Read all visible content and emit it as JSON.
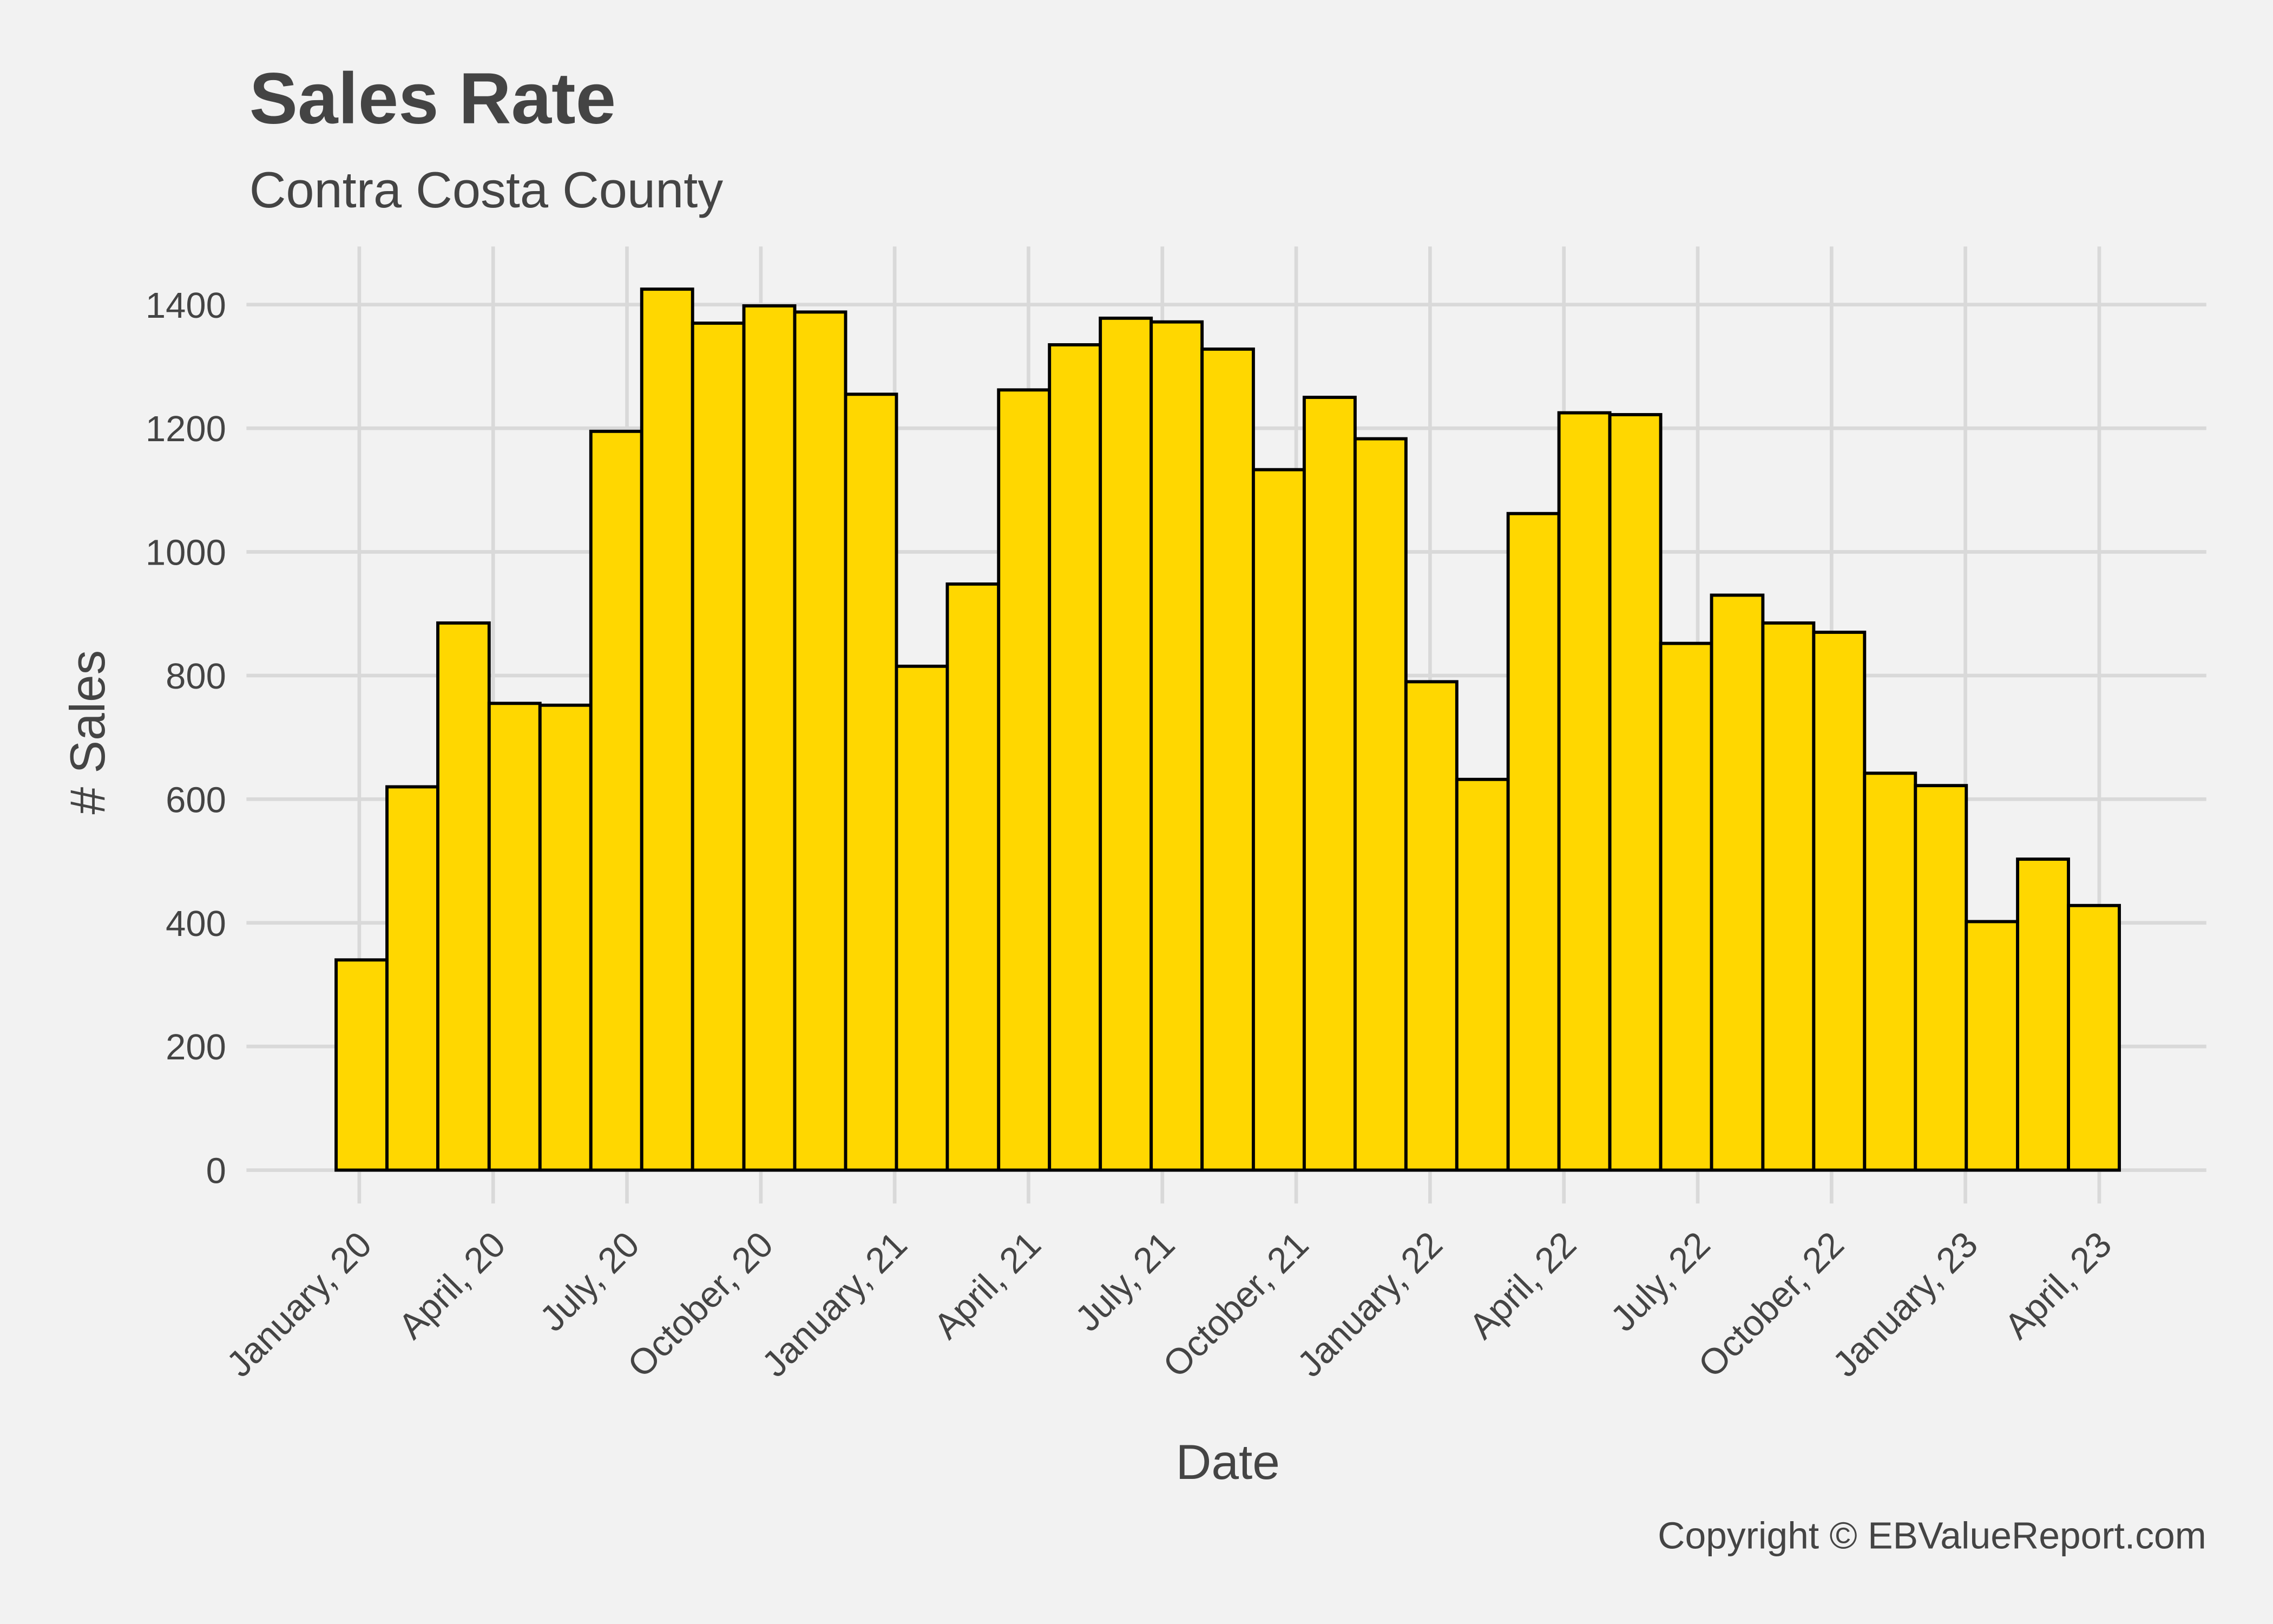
{
  "chart_data": {
    "type": "histogram",
    "title": "Sales Rate",
    "subtitle": "Contra Costa County",
    "x_label": "Date",
    "y_label": "# Sales",
    "caption": "Copyright  © EBValueReport.com",
    "bins": [
      -0.52,
      0.62,
      1.76,
      2.91,
      4.05,
      5.19,
      6.33,
      7.47,
      8.62,
      9.76,
      10.9,
      12.04,
      13.18,
      14.33,
      15.47,
      16.61,
      17.75,
      18.89,
      20.04,
      21.18,
      22.32,
      23.46,
      24.6,
      25.75,
      26.89,
      28.03,
      29.17,
      30.31,
      31.46,
      32.6,
      33.74,
      34.88,
      36.02,
      37.17,
      38.31,
      39.45
    ],
    "values": [
      340,
      620,
      885,
      755,
      752,
      1195,
      1425,
      1370,
      1398,
      1388,
      1255,
      815,
      948,
      1262,
      1335,
      1378,
      1372,
      1328,
      1133,
      1250,
      1183,
      790,
      632,
      1062,
      1225,
      1222,
      852,
      930,
      885,
      870,
      642,
      622,
      402,
      503,
      428
    ],
    "color": "#ffd700",
    "edgecolor": "#000000",
    "xlim": [
      -2.53,
      41.4
    ],
    "ylim": [
      -54,
      1494
    ],
    "xticks": [
      {
        "value": 0,
        "label": "January, 20"
      },
      {
        "value": 3,
        "label": "April, 20"
      },
      {
        "value": 6,
        "label": "July, 20"
      },
      {
        "value": 9,
        "label": "October, 20"
      },
      {
        "value": 12,
        "label": "January, 21"
      },
      {
        "value": 15,
        "label": "April, 21"
      },
      {
        "value": 18,
        "label": "July, 21"
      },
      {
        "value": 21,
        "label": "October, 21"
      },
      {
        "value": 24,
        "label": "January, 22"
      },
      {
        "value": 27,
        "label": "April, 22"
      },
      {
        "value": 30,
        "label": "July, 22"
      },
      {
        "value": 33,
        "label": "October, 22"
      },
      {
        "value": 36,
        "label": "January, 23"
      },
      {
        "value": 39,
        "label": "April, 23"
      }
    ],
    "yticks": [
      0,
      200,
      400,
      600,
      800,
      1000,
      1200,
      1400
    ],
    "grid": true
  }
}
